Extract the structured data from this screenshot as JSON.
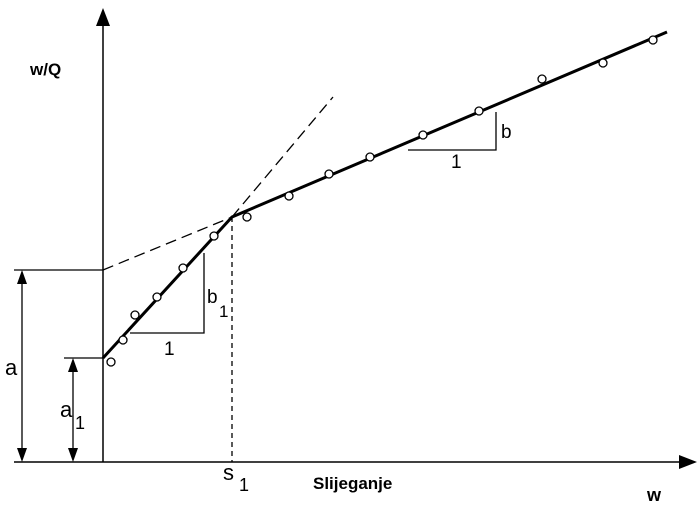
{
  "diagram": {
    "y_axis_label": "w/Q",
    "x_axis_label": "w",
    "x_caption": "Slijeganje",
    "intercept_labels": {
      "a": "a",
      "a1_base": "a",
      "a1_sub": "1"
    },
    "breakpoint_label": {
      "base": "s",
      "sub": "1"
    },
    "slope_triangle_1": {
      "run": "1",
      "rise_base": "b",
      "rise_sub": "1"
    },
    "slope_triangle_2": {
      "run": "1",
      "rise": "b"
    }
  }
}
